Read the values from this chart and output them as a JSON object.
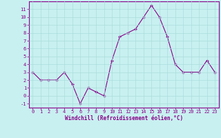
{
  "x": [
    0,
    1,
    2,
    3,
    4,
    5,
    6,
    7,
    8,
    9,
    10,
    11,
    12,
    13,
    14,
    15,
    16,
    17,
    18,
    19,
    20,
    21,
    22,
    23
  ],
  "y": [
    3,
    2,
    2,
    2,
    3,
    1.5,
    -1,
    1,
    0.5,
    0,
    4.5,
    7.5,
    8,
    8.5,
    10,
    11.5,
    10,
    7.5,
    4,
    3,
    3,
    3,
    4.5,
    3
  ],
  "line_color": "#880088",
  "marker": "+",
  "marker_color": "#880088",
  "bg_color": "#c8f0f0",
  "grid_color": "#aadddd",
  "xlabel": "Windchill (Refroidissement éolien,°C)",
  "xlabel_color": "#880088",
  "tick_color": "#880088",
  "spine_color": "#880088",
  "ylim": [
    -1.5,
    12
  ],
  "xlim": [
    -0.5,
    23.5
  ],
  "yticks": [
    -1,
    0,
    1,
    2,
    3,
    4,
    5,
    6,
    7,
    8,
    9,
    10,
    11
  ],
  "xticks": [
    0,
    1,
    2,
    3,
    4,
    5,
    6,
    7,
    8,
    9,
    10,
    11,
    12,
    13,
    14,
    15,
    16,
    17,
    18,
    19,
    20,
    21,
    22,
    23
  ],
  "tick_fontsize": 5.0,
  "xlabel_fontsize": 5.5,
  "linewidth": 0.8,
  "markersize": 3.5
}
